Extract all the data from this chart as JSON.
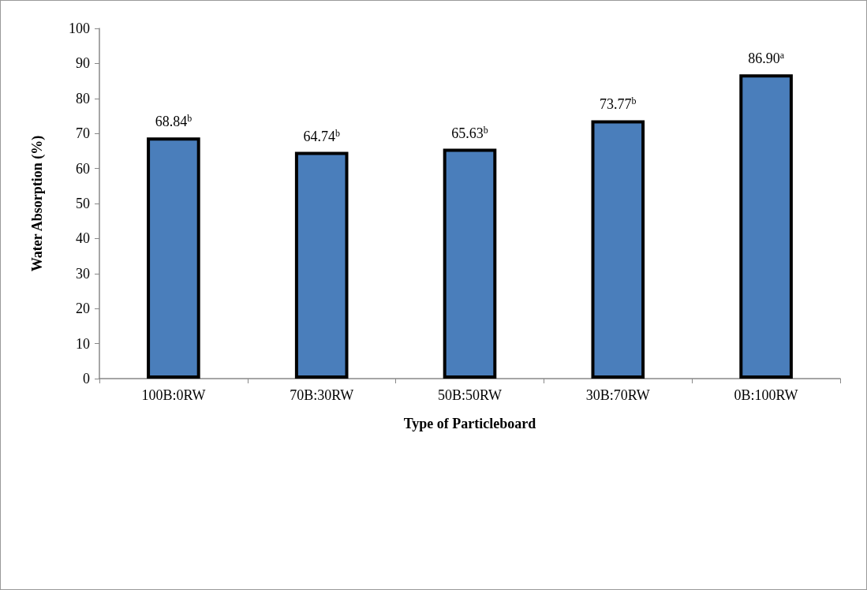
{
  "chart_data": {
    "type": "bar",
    "xlabel": "Type of Particleboard",
    "ylabel": "Water Absorption (%)",
    "categories": [
      "100B:0RW",
      "70B:30RW",
      "50B:50RW",
      "30B:70RW",
      "0B:100RW"
    ],
    "values": [
      68.84,
      64.74,
      65.63,
      73.77,
      86.9
    ],
    "value_labels": [
      "68.84$^{b}$",
      "64.74$^{b}$",
      "65.63$^{b}$",
      "73.77$^{b}$",
      "86.90$^{a}$"
    ],
    "color": "#4a7ebb",
    "ylim": [
      0,
      100
    ],
    "yticks": [
      0,
      10,
      20,
      30,
      40,
      50,
      60,
      70,
      80,
      90,
      100
    ],
    "grid": false
  }
}
